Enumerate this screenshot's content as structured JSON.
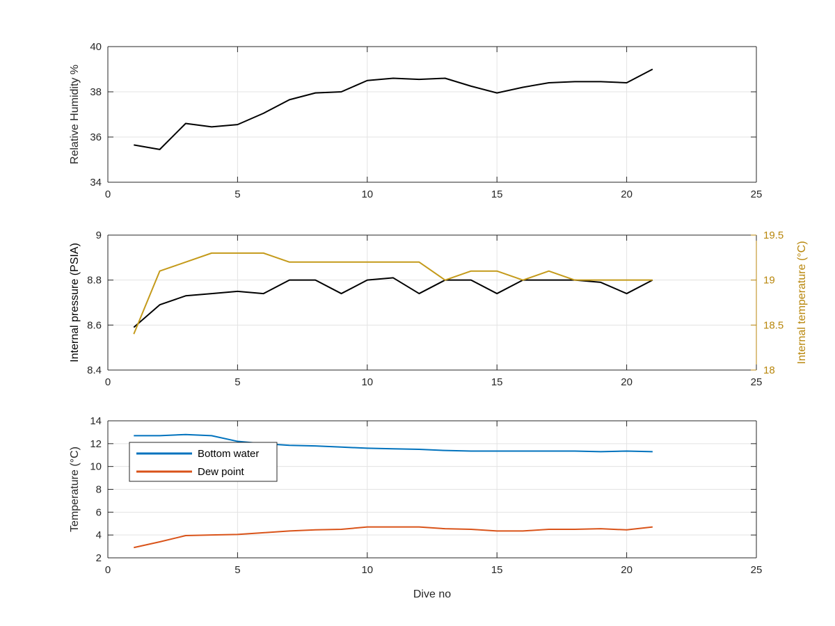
{
  "chart_data": [
    {
      "type": "line",
      "xlabel": "",
      "ylabel": "Relative Humidity %",
      "xlim": [
        0,
        25
      ],
      "ylim": [
        34,
        40
      ],
      "xticks": [
        0,
        5,
        10,
        15,
        20,
        25
      ],
      "yticks": [
        34,
        36,
        38,
        40
      ],
      "grid": true,
      "series": [
        {
          "color": "#000000",
          "x": [
            1,
            2,
            3,
            4,
            5,
            6,
            7,
            8,
            9,
            10,
            11,
            12,
            13,
            14,
            15,
            16,
            17,
            18,
            19,
            20,
            21
          ],
          "values": [
            35.65,
            35.45,
            36.6,
            36.45,
            36.55,
            37.05,
            37.65,
            37.95,
            38.0,
            38.5,
            38.6,
            38.55,
            38.6,
            38.25,
            37.95,
            38.2,
            38.4,
            38.45,
            38.45,
            38.4,
            39.0
          ]
        }
      ]
    },
    {
      "type": "line",
      "xlabel": "",
      "ylabel": "Internal pressure (PSIA)",
      "y2label": "Internal temperature (°C)",
      "xlim": [
        0,
        25
      ],
      "ylim": [
        8.4,
        9
      ],
      "y2lim": [
        18,
        19.5
      ],
      "xticks": [
        0,
        5,
        10,
        15,
        20,
        25
      ],
      "yticks": [
        8.4,
        8.6,
        8.8,
        9
      ],
      "y2ticks": [
        18,
        18.5,
        19,
        19.5
      ],
      "grid": true,
      "y2color": "#B8860B",
      "series": [
        {
          "axis": "left",
          "color": "#000000",
          "x": [
            1,
            2,
            3,
            4,
            5,
            6,
            7,
            8,
            9,
            10,
            11,
            12,
            13,
            14,
            15,
            16,
            17,
            18,
            19,
            20,
            21
          ],
          "values": [
            8.59,
            8.69,
            8.73,
            8.74,
            8.75,
            8.74,
            8.8,
            8.8,
            8.74,
            8.8,
            8.81,
            8.74,
            8.8,
            8.8,
            8.74,
            8.8,
            8.8,
            8.8,
            8.79,
            8.74,
            8.8
          ]
        },
        {
          "axis": "right",
          "color": "#C49A1A",
          "x": [
            1,
            2,
            3,
            4,
            5,
            6,
            7,
            8,
            9,
            10,
            11,
            12,
            13,
            14,
            15,
            16,
            17,
            18,
            19,
            20,
            21
          ],
          "values": [
            18.4,
            19.1,
            19.2,
            19.3,
            19.3,
            19.3,
            19.2,
            19.2,
            19.2,
            19.2,
            19.2,
            19.2,
            19.0,
            19.1,
            19.1,
            19.0,
            19.1,
            19.0,
            19.0,
            19.0,
            19.0
          ]
        }
      ]
    },
    {
      "type": "line",
      "xlabel": "Dive no",
      "ylabel": "Temperature (°C)",
      "xlim": [
        0,
        25
      ],
      "ylim": [
        2,
        14
      ],
      "xticks": [
        0,
        5,
        10,
        15,
        20,
        25
      ],
      "yticks": [
        2,
        4,
        6,
        8,
        10,
        12,
        14
      ],
      "grid": true,
      "legend": "top-left",
      "series": [
        {
          "name": "Bottom water",
          "color": "#0072BD",
          "x": [
            1,
            2,
            3,
            4,
            5,
            6,
            7,
            8,
            9,
            10,
            11,
            12,
            13,
            14,
            15,
            16,
            17,
            18,
            19,
            20,
            21
          ],
          "values": [
            12.7,
            12.7,
            12.8,
            12.7,
            12.2,
            12.0,
            11.85,
            11.8,
            11.7,
            11.6,
            11.55,
            11.5,
            11.4,
            11.35,
            11.35,
            11.35,
            11.35,
            11.35,
            11.3,
            11.35,
            11.3
          ]
        },
        {
          "name": "Dew point",
          "color": "#D95319",
          "x": [
            1,
            2,
            3,
            4,
            5,
            6,
            7,
            8,
            9,
            10,
            11,
            12,
            13,
            14,
            15,
            16,
            17,
            18,
            19,
            20,
            21
          ],
          "values": [
            2.9,
            3.4,
            3.95,
            4.0,
            4.05,
            4.2,
            4.35,
            4.45,
            4.5,
            4.7,
            4.7,
            4.7,
            4.55,
            4.5,
            4.35,
            4.35,
            4.5,
            4.5,
            4.55,
            4.45,
            4.7
          ]
        }
      ]
    }
  ]
}
